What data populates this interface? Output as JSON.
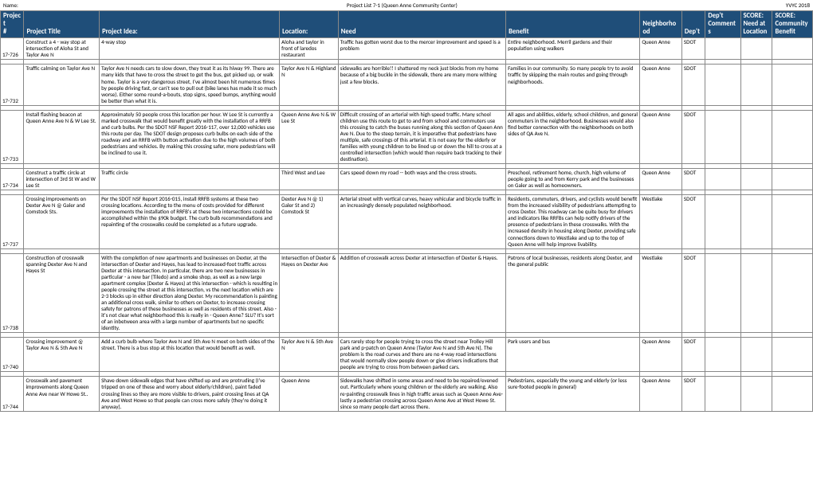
{
  "header": {
    "left": "Name:",
    "center": "Project List 7-1 (Queen Anne Community Center)",
    "right": "YVYC 2018"
  },
  "columns": [
    {
      "l1": "",
      "l2": "Project",
      "l3": "#"
    },
    {
      "l1": "",
      "l2": "",
      "l3": "Project Title"
    },
    {
      "l1": "",
      "l2": "",
      "l3": "Project Idea:"
    },
    {
      "l1": "",
      "l2": "",
      "l3": "Location:"
    },
    {
      "l1": "",
      "l2": "",
      "l3": "Need"
    },
    {
      "l1": "",
      "l2": "",
      "l3": "Benefit"
    },
    {
      "l1": "",
      "l2": "",
      "l3": "Neighborhood"
    },
    {
      "l1": "",
      "l2": "",
      "l3": "Dep't"
    },
    {
      "l1": "",
      "l2": "Dep't",
      "l3": "Comments"
    },
    {
      "l1": "SCORE:",
      "l2": "Need at",
      "l3": "Location"
    },
    {
      "l1": "SCORE:",
      "l2": "Community",
      "l3": "Benefit"
    }
  ],
  "rows": [
    {
      "id": "17-726",
      "title": "Construct a 4 - way stop at intersection of Aloha St and Taylor Ave N",
      "idea": "4-way stop",
      "location": "Aloha and taylor in front of laredos restaurant",
      "need": "Traffic has gotten worst due to the mercer improvement and speed is a problem",
      "benefit": "Entire neighborhood. Merril gardens and their population using walkers",
      "nbhd": "Queen Anne",
      "dept": "SDOT"
    },
    {
      "id": "17-732",
      "title": "Traffic calming on Taylor Ave N",
      "idea": "Taylor Ave N needs cars to slow down, they treat it as its hiway 99.  There are many kids that have to cross the street to get the bus, get picked up, or walk home.  Taylor is a very dangerous street, I've almost been hit numerous times by people driving fast, or can't see to pull out (bike lanes has made it so much worse).  Either some round-a-bouts, stop signs, speed bumps, anything would be better than what it is.",
      "location": "Taylor Ave N & Highland N",
      "need": "sidewalks are horrible!! I shattered my neck just blocks from my home because of a big buckle in the sidewalk, there are many more withing just a few blocks.",
      "benefit": "Families in our community.  So many people try to avoid traffic by skipping the main routes and going through neighborhoods.",
      "nbhd": "Queen Anne",
      "dept": "SDOT"
    },
    {
      "id": "17-733",
      "title": "Install flashing beacon at Queen Anne Ave N & W Lee St.",
      "idea": "Approximately 50 people cross this location per hour.  W Lee St is currently a marked crosswalk that would benefit greatly with the installation of a RRFB and curb bulbs.  Per the SDOT NSF Report 2016-117, over 12,000 vehicles use this route per day. The SDOT design proposes curb bulbs on each side of the roadway and an RRFB with button activation due to the high volumes of both pedestrians and vehicles.  By making this crossing safer, more pedestrians will be inclined to use it.",
      "location": "Queen Anne Ave N & W Lee St",
      "need": "Difficult crossing of an arterial with high speed traffic. Many school children use this route to get to and from school and commuters use this crossing to catch the buses running along this section of Queen Ann Ave N. Due to the steep terrain, it is imperative that pedestrians have multiple, safe crossings of this arterial.  It is not easy for the elderly or families with young children to be lined up or down the hill to cross at a controlled intersection (which would then require back tracking to their destination).",
      "benefit": "All ages and abilities, elderly, school children, and general commuters in the neighborhood. Businesses would also find better connection with the neighborhoods on both sides of QA Ave N.",
      "nbhd": "Queen Anne",
      "dept": "SDOT"
    },
    {
      "id": "17-734",
      "title": "Construct a traffic circle at intersection of 3rd St W and W Lee St",
      "idea": "Traffic circle",
      "location": "Third West and Lee",
      "need": "Cars speed down my road -- both ways and the cross streets.",
      "benefit": "Preschool, retirement home, church, high volume of people going to and from Kerry park and the businesses on Galer as well as homeowners.",
      "nbhd": "Queen Anne",
      "dept": "SDOT"
    },
    {
      "id": "17-737",
      "title": "Crossing improvements on Dexter Ave N @ Galer and Comstock Sts.",
      "idea": "Per the SDOT NSF Report 2016-015, install RRFB systems at these two crossing locations.  According to the menu of costs provided for different improvements the installation of RRFB's at these two intersections could be accomplished within the $90k budget. The curb bulb recommendations and repainting of the crosswalks could be completed as a future upgrade.",
      "location": "Dexter Ave N @ 1) Galer St and 2) Comstock St",
      "need": "Arterial street with vertical curves, heavy vehicular and bicycle traffic in an increasingly densely populated neighborhood.",
      "benefit": "Residents, commuters, drivers, and cyclists would benefit from the increased visibility of pedestrians attempting to cross Dexter.  This roadway can be quite busy for drivers and indicators like RRFBs can help notify drivers of the presence of pedestrians in these crosswalks.  With the increased density in housing along Dexter, providing safe connections down to Westlake and up to the top of Queen Anne will help improve livability.",
      "nbhd": "Westlake",
      "dept": "SDOT"
    },
    {
      "id": "17-738",
      "title": "Construction of crosswalk spanning Dexter Ave N and Hayes St",
      "idea": "With the completion of new apartments and businesses on Dexter, at the intersection of Dexter and Hayes, has lead to increased-foot traffic across Dexter at this intersection. In particular, there are two new businesses in particular - a new bar (Tiledo) and a smoke shop, as well as a new large apartment complex (Dexter & Hayes) at this intersection - which is resulting in people crossing the street at this intersection, vs the next location which are 2-3 blocks up in either direction along Dexter.  My recommendation is painting an additional cross walk, similar to others on Dexter, to increase crossing safety for patrons of these businesses as well as residents of this street.   Also - it's not clear what neighborhood this is really in - Queen Anne? SLU? It's sort of an inbetween area with a large number of apartments but no specific identity.",
      "location": "Intersection of Dexter & Hayes on Dexter Ave",
      "need": "Addition of crosswalk across Dexter at intersection of Dexter & Hayes.",
      "benefit": "Patrons of local businesses, residents along Dexter, and the general public",
      "nbhd": "Westlake",
      "dept": "SDOT"
    },
    {
      "id": "17-740",
      "title": "Crossing improvement @ Taylor Ave N & 5th Ave N",
      "idea": "Add a curb bulb where Taylor Ave N and 5th Ave N meet on both sides of the street.  There is a bus stop at this location that would benefit as well.",
      "location": "Taylor Ave N & 5th Ave N",
      "need": "Cars rarely stop for people trying to cross the street near Trolley Hill park and p-patch on Queen Anne (Taylor Ave N and 5th Ave N). The problem is the road curves and there are no 4-way road intersections that would normally slow people down or give drivers indications that people are trying to cross from between parked cars.",
      "benefit": "Park users and bus",
      "nbhd": "Queen Anne",
      "dept": "SDOT"
    },
    {
      "id": "17-744",
      "title": "Crosswalk and pavement improvements along Queen Anne Ave near W Howe St..",
      "idea": "Shave down sidewalk edges that have shifted up and are protruding (I've tripped on one of these and worry about elderly/children), paint faded crossing lines so they are more visible to drivers, paint crossing lines at QA Ave and West Howe so that people can cross more safely (they're doing it anyway).",
      "location": "Queen Anne",
      "need": "Sidewalks have shifted in some areas and need to be repaired/evened out. Particularly where young children or the elderly are walking. Also re-painting crosswalk lines in high traffic areas such as Queen Anne Ave- lastly a pedestrian crossing across Queen Anne Ave at West Howe St. since so many people dart across there.",
      "benefit": "Pedestrians, especially the young and elderly (or less sure-footed people in general)",
      "nbhd": "Queen Anne",
      "dept": "SDOT"
    }
  ]
}
